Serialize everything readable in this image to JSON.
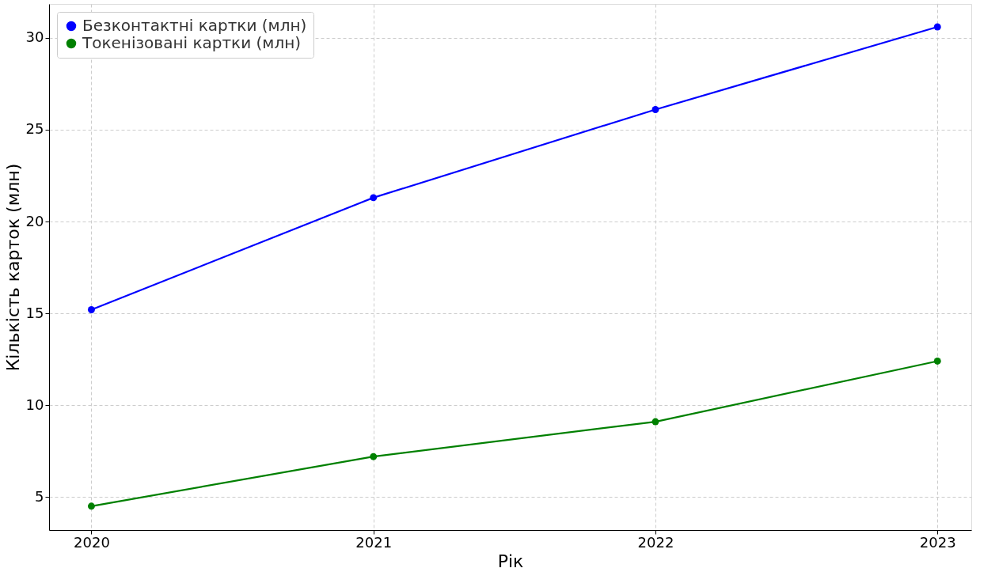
{
  "chart_data": {
    "type": "line",
    "xlabel": "Рік",
    "ylabel": "Кількість карток (млн)",
    "x": [
      2020,
      2021,
      2022,
      2023
    ],
    "series": [
      {
        "name": "Безконтактні картки (млн)",
        "color": "#0000ff",
        "values": [
          15.2,
          21.3,
          26.1,
          30.6
        ]
      },
      {
        "name": "Токенізовані картки (млн)",
        "color": "#008000",
        "values": [
          4.5,
          7.2,
          9.1,
          12.4
        ]
      }
    ],
    "xlim": [
      2019.85,
      2023.12
    ],
    "xticks": [
      2020,
      2021,
      2022,
      2023
    ],
    "ylim": [
      3.2,
      31.85
    ],
    "yticks": [
      5,
      10,
      15,
      20,
      25,
      30
    ],
    "grid": true,
    "legend": "top left",
    "marker": "circle",
    "line_style": "solid"
  }
}
